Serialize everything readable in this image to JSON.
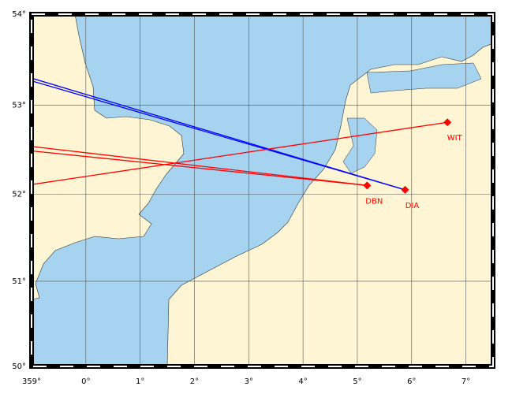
{
  "map": {
    "xlim": [
      -1,
      7.5
    ],
    "ylim": [
      50,
      54
    ],
    "xticks": [
      {
        "value": -1,
        "label": "359°"
      },
      {
        "value": 0,
        "label": "0°"
      },
      {
        "value": 1,
        "label": "1°"
      },
      {
        "value": 2,
        "label": "2°"
      },
      {
        "value": 3,
        "label": "3°"
      },
      {
        "value": 4,
        "label": "4°"
      },
      {
        "value": 5,
        "label": "5°"
      },
      {
        "value": 6,
        "label": "6°"
      },
      {
        "value": 7,
        "label": "7°"
      }
    ],
    "yticks": [
      {
        "value": 50,
        "label": "50°"
      },
      {
        "value": 51,
        "label": "51°"
      },
      {
        "value": 52,
        "label": "52°"
      },
      {
        "value": 53,
        "label": "53°"
      },
      {
        "value": 54,
        "label": "54°"
      }
    ],
    "stations": [
      {
        "label": "DBN",
        "lon": 5.18,
        "lat": 52.1,
        "color": "#ff0000",
        "tracks": [
          {
            "color": "#ff0000",
            "end": [
              -1,
              52.54
            ]
          },
          {
            "color": "#ff0000",
            "end": [
              -1,
              52.49
            ]
          }
        ]
      },
      {
        "label": "DIA",
        "lon": 5.88,
        "lat": 52.05,
        "color": "#ff0000",
        "tracks": [
          {
            "color": "#0000ff",
            "end": [
              -1,
              53.3
            ]
          },
          {
            "color": "#0000ff",
            "end": [
              -1,
              53.27
            ]
          }
        ]
      },
      {
        "label": "WIT",
        "lon": 6.66,
        "lat": 52.81,
        "color": "#ff0000",
        "tracks": [
          {
            "color": "#ff0000",
            "end": [
              -1,
              52.11
            ]
          }
        ]
      }
    ]
  }
}
